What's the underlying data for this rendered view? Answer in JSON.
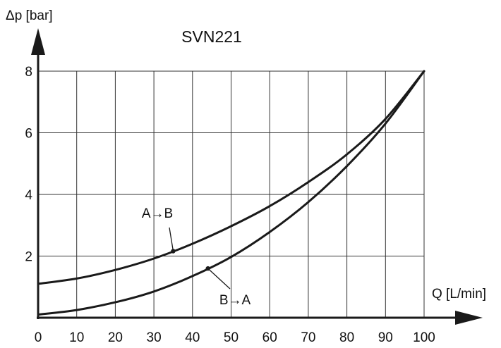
{
  "chart_data": {
    "type": "line",
    "title": "SVN221",
    "xlabel": "Q [L/min]",
    "ylabel": "Δp [bar]",
    "xlim": [
      0,
      100
    ],
    "ylim": [
      0,
      8
    ],
    "x_ticks": [
      0,
      10,
      20,
      30,
      40,
      50,
      60,
      70,
      80,
      90,
      100
    ],
    "y_ticks": [
      2,
      4,
      6,
      8
    ],
    "grid": true,
    "series": [
      {
        "name": "A→B",
        "x": [
          0,
          10,
          20,
          30,
          40,
          50,
          60,
          70,
          80,
          90,
          100
        ],
        "y": [
          1.1,
          1.27,
          1.55,
          1.92,
          2.4,
          2.97,
          3.62,
          4.4,
          5.3,
          6.45,
          8.0
        ]
      },
      {
        "name": "B→A",
        "x": [
          0,
          10,
          20,
          30,
          40,
          50,
          60,
          70,
          80,
          90,
          100
        ],
        "y": [
          0.1,
          0.25,
          0.5,
          0.85,
          1.35,
          1.97,
          2.78,
          3.75,
          4.92,
          6.3,
          8.0
        ]
      }
    ],
    "annotations": [
      {
        "text": "A→B",
        "series": 0,
        "x": 35
      },
      {
        "text": "B→A",
        "series": 1,
        "x": 44
      }
    ],
    "colors": {
      "line": "#1a1a1a",
      "grid": "#333333",
      "background": "#ffffff"
    }
  }
}
